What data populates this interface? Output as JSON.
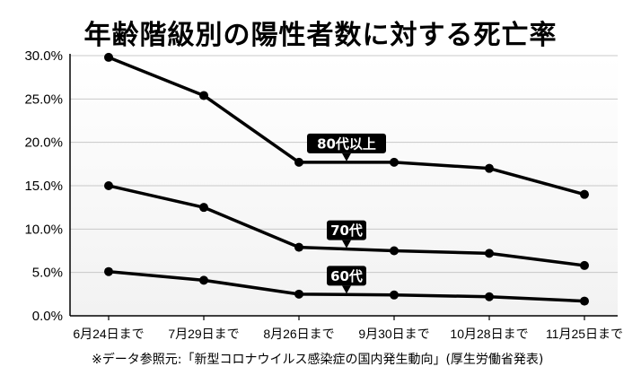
{
  "chart_data": {
    "type": "line",
    "title": "年齢階級別の陽性者数に対する死亡率",
    "categories": [
      "6月24日まで",
      "7月29日まで",
      "8月26日まで",
      "9月30日まで",
      "10月28日まで",
      "11月25日まで"
    ],
    "y_ticks": [
      "0.0%",
      "5.0%",
      "10.0%",
      "15.0%",
      "20.0%",
      "25.0%",
      "30.0%"
    ],
    "ylim": [
      0,
      30
    ],
    "series": [
      {
        "name": "80代以上",
        "values": [
          29.8,
          25.4,
          17.7,
          17.7,
          17.0,
          14.0
        ]
      },
      {
        "name": "70代",
        "values": [
          15.0,
          12.5,
          7.9,
          7.5,
          7.2,
          5.8
        ]
      },
      {
        "name": "60代",
        "values": [
          5.1,
          4.1,
          2.5,
          2.4,
          2.2,
          1.7
        ]
      }
    ],
    "grid": true,
    "source": "※データ参照元:「新型コロナウイルス感染症の国内発生動向」(厚生労働省発表)"
  }
}
